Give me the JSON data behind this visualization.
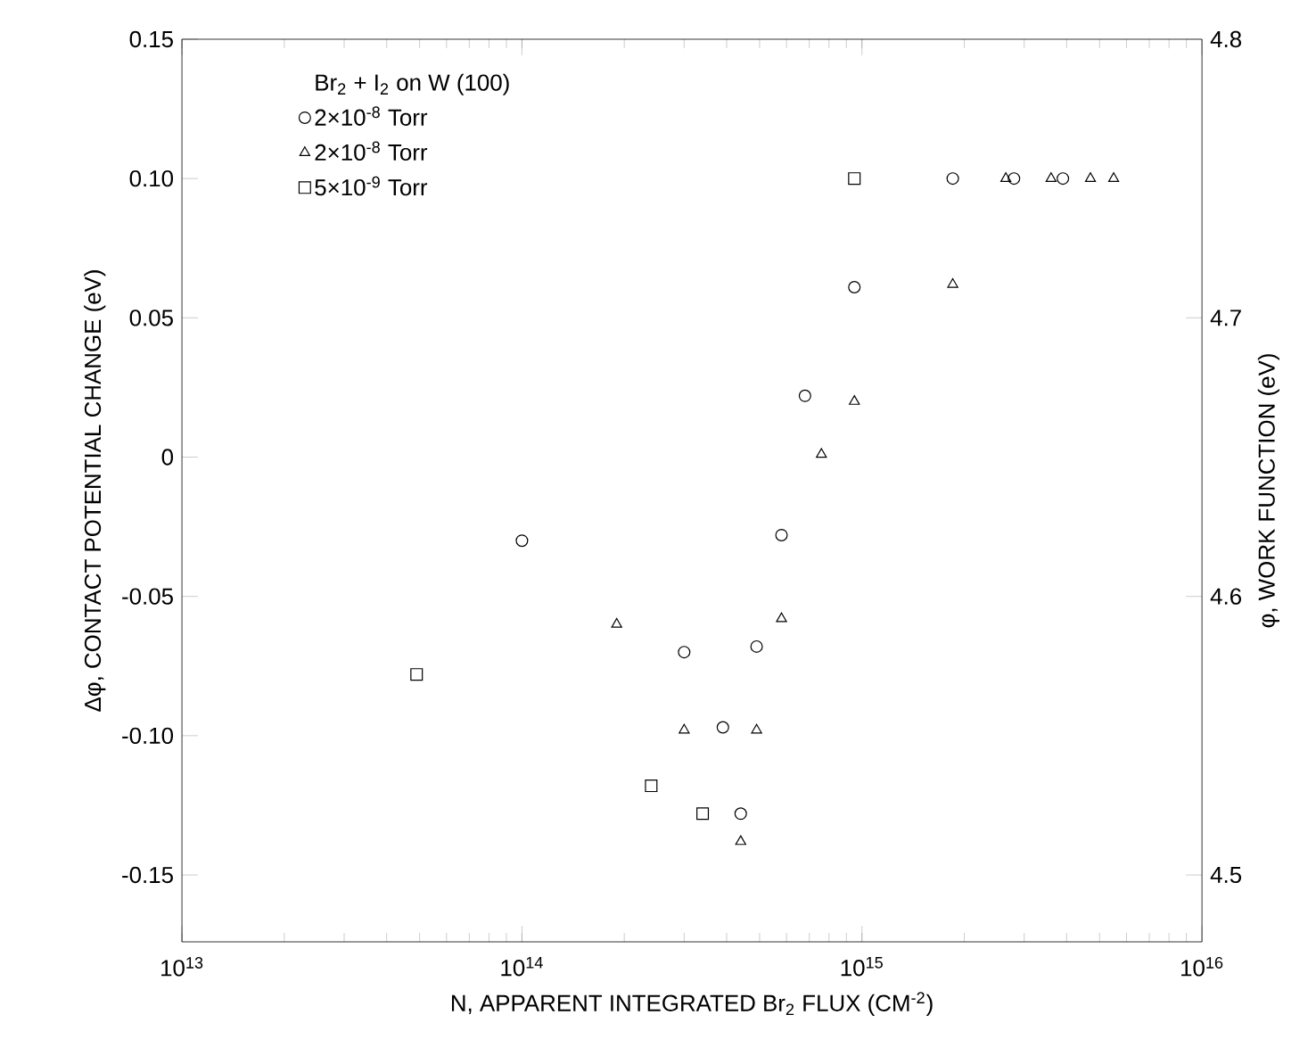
{
  "chart_data": {
    "type": "scatter",
    "xlabel": "N, APPARENT INTEGRATED Br$_{2}$ FLUX (CM$^{-2}$)",
    "ylabel": "Δφ, CONTACT POTENTIAL CHANGE (eV)",
    "y2label": "φ, WORK FUNCTION (eV)",
    "legend_title": "Br$_{2}$ + I$_{2}$ on W (100)",
    "log": "x",
    "legend": "top left",
    "grid": false,
    "xlim": [
      10000000000000.0,
      1e+16
    ],
    "xticks": [
      {
        "value": 10000000000000.0,
        "label": "10$^{13}$"
      },
      {
        "value": 100000000000000.0,
        "label": "10$^{14}$"
      },
      {
        "value": 1000000000000000.0,
        "label": "10$^{15}$"
      },
      {
        "value": 1e+16,
        "label": "10$^{16}$"
      }
    ],
    "ylim": [
      -0.174,
      0.15
    ],
    "yticks": [
      {
        "value": 0.15,
        "label": "0.15"
      },
      {
        "value": 0.1,
        "label": "0.10"
      },
      {
        "value": 0.05,
        "label": "0.05"
      },
      0,
      {
        "value": -0.05,
        "label": "-0.05"
      },
      {
        "value": -0.1,
        "label": "-0.10"
      },
      {
        "value": -0.15,
        "label": "-0.15"
      }
    ],
    "y2lim": [
      4.476,
      4.8
    ],
    "y2ticks": [
      4.5,
      4.6,
      4.7,
      4.8
    ],
    "series": [
      {
        "name": "2×10$^{-8}$ Torr",
        "color": "#000000",
        "marker": "circle",
        "x": [
          100000000000000.0,
          300000000000000.0,
          390000000000000.0,
          440000000000000.0,
          490000000000000.0,
          580000000000000.0,
          680000000000000.0,
          950000000000000.0,
          1850000000000000.0,
          2800000000000000.0,
          3900000000000000.0
        ],
        "values": [
          -0.03,
          -0.07,
          -0.097,
          -0.128,
          -0.068,
          -0.028,
          0.022,
          0.061,
          0.1,
          0.1,
          0.1
        ]
      },
      {
        "name": "2×10$^{-8}$ Torr",
        "color": "#000000",
        "marker": "triangle",
        "x": [
          190000000000000.0,
          300000000000000.0,
          440000000000000.0,
          490000000000000.0,
          580000000000000.0,
          760000000000000.0,
          950000000000000.0,
          1850000000000000.0,
          2650000000000000.0,
          3600000000000000.0,
          4700000000000000.0,
          5500000000000000.0
        ],
        "values": [
          -0.06,
          -0.098,
          -0.138,
          -0.098,
          -0.058,
          0.001,
          0.02,
          0.062,
          0.1,
          0.1,
          0.1,
          0.1
        ]
      },
      {
        "name": "5×10$^{-9}$ Torr",
        "color": "#000000",
        "marker": "square",
        "x": [
          49000000000000.0,
          240000000000000.0,
          340000000000000.0,
          950000000000000.0
        ],
        "values": [
          -0.078,
          -0.118,
          -0.128,
          0.1
        ]
      }
    ]
  }
}
